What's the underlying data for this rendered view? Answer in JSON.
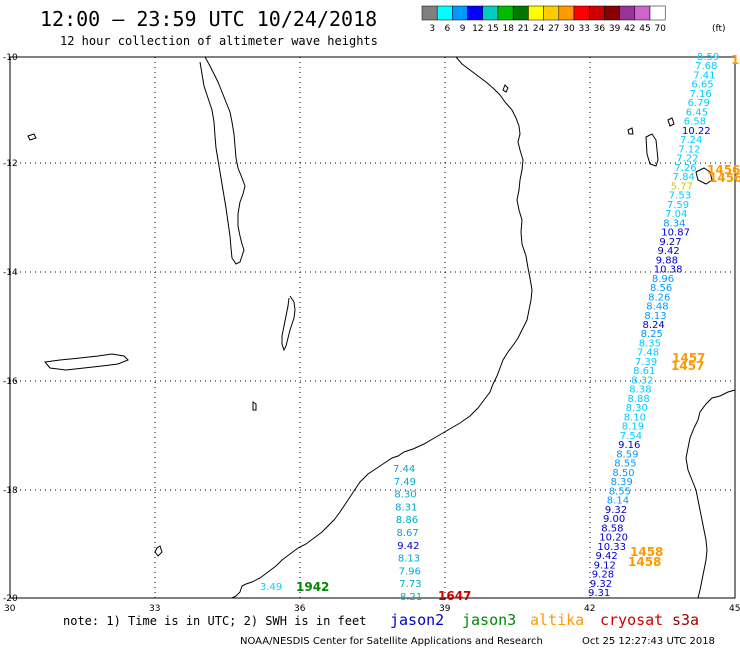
{
  "title": "12:00 — 23:59 UTC 10/24/2018",
  "subtitle": "12 hour collection of altimeter wave heights",
  "colorbar": {
    "colors": [
      "#808080",
      "#00ffff",
      "#0099ff",
      "#0000ff",
      "#00ccc0",
      "#00bb00",
      "#007700",
      "#ffff00",
      "#ffcc00",
      "#ff9900",
      "#ff0000",
      "#cc0000",
      "#880000",
      "#993399",
      "#cc66cc",
      "#ffffff"
    ],
    "labels": [
      "3",
      "6",
      "9",
      "12",
      "15",
      "18",
      "21",
      "24",
      "27",
      "30",
      "33",
      "36",
      "39",
      "42",
      "45",
      "70"
    ],
    "unit": "(ft)"
  },
  "axes": {
    "lat_ticks": [
      "-10",
      "-12",
      "-14",
      "-16",
      "-18",
      "-20"
    ],
    "lon_ticks": [
      "30",
      "33",
      "36",
      "39",
      "42",
      "45"
    ]
  },
  "note": "note: 1) Time is in UTC; 2) SWH is in feet",
  "legend": [
    {
      "name": "jason2",
      "color": "#0000cc"
    },
    {
      "name": "jason3",
      "color": "#008800"
    },
    {
      "name": "altika",
      "color": "#ff9900"
    },
    {
      "name": "cryosat",
      "color": "#cc0000"
    },
    {
      "name": "s3a",
      "color": "#990000"
    }
  ],
  "footer_left": "NOAA/NESDIS Center for Satellite Applications and Research",
  "footer_right": "Oct 25 12:27:43 UTC 2018",
  "time_labels": [
    {
      "text": "1942",
      "color": "#008800"
    },
    {
      "text": "1647",
      "color": "#cc0000"
    },
    {
      "text": "1456",
      "color": "#ff9900"
    },
    {
      "text": "1456",
      "color": "#ff9900"
    },
    {
      "text": "1457",
      "color": "#ff9900"
    },
    {
      "text": "1457",
      "color": "#ff9900"
    },
    {
      "text": "1458",
      "color": "#ff9900"
    },
    {
      "text": "1458",
      "color": "#ff9900"
    },
    {
      "text": "1",
      "color": "#ff9900"
    }
  ],
  "track_west": {
    "color_light": "#00aacc",
    "values": [
      "7.44",
      "7.49",
      "8.30",
      "8.31",
      "8.86",
      "8.67",
      "9.42",
      "8.13",
      "7.96",
      "7.73",
      "8.21"
    ]
  },
  "single_obs": {
    "text": "3.49",
    "color": "#00ccff"
  },
  "track_east": {
    "values": [
      "8.59",
      "7.68",
      "7.41",
      "6.65",
      "7.16",
      "6.79",
      "6.45",
      "6.58",
      "10.22",
      "7.24",
      "7.12",
      "7.22",
      "7.26",
      "7.84",
      "5.77",
      "7.53",
      "7.59",
      "7.04",
      "8.34",
      "10.87",
      "9.27",
      "9.42",
      "9.88",
      "10.38",
      "8.96",
      "8.56",
      "8.26",
      "8.48",
      "8.13",
      "8.24",
      "8.25",
      "8.35",
      "7.48",
      "7.39",
      "8.61",
      "8.32",
      "8.38",
      "8.88",
      "8.30",
      "8.10",
      "8.19",
      "7.54",
      "9.16",
      "8.59",
      "8.55",
      "8.50",
      "8.39",
      "8.55",
      "8.14",
      "9.32",
      "9.00",
      "8.58",
      "10.20",
      "10.33",
      "9.42",
      "9.12",
      "9.28",
      "9.32",
      "9.31"
    ],
    "colors": [
      "#00ccff",
      "#00ccff",
      "#00ccff",
      "#00ccff",
      "#00ccff",
      "#00ccff",
      "#00ccff",
      "#00ccff",
      "#0000cc",
      "#00ccff",
      "#00ccff",
      "#00ccff",
      "#00ccff",
      "#00ccff",
      "#cccc00",
      "#00ccff",
      "#00ccff",
      "#00ccff",
      "#0099ff",
      "#0000cc",
      "#0000cc",
      "#0000cc",
      "#0000cc",
      "#0000cc",
      "#0099ff",
      "#0099ff",
      "#0099ff",
      "#0099ff",
      "#0099ff",
      "#0000cc",
      "#0099ff",
      "#00ccff",
      "#00ccff",
      "#00ccff",
      "#00ccff",
      "#00ccff",
      "#00ccff",
      "#00ccff",
      "#00ccff",
      "#00ccff",
      "#00ccff",
      "#00ccff",
      "#0000cc",
      "#0099ff",
      "#0099ff",
      "#0099ff",
      "#0099ff",
      "#0099ff",
      "#0099ff",
      "#0000cc",
      "#0000cc",
      "#0000cc",
      "#0000cc",
      "#0000cc",
      "#0000cc",
      "#0000cc",
      "#0000cc",
      "#0000cc",
      "#0000cc"
    ]
  }
}
